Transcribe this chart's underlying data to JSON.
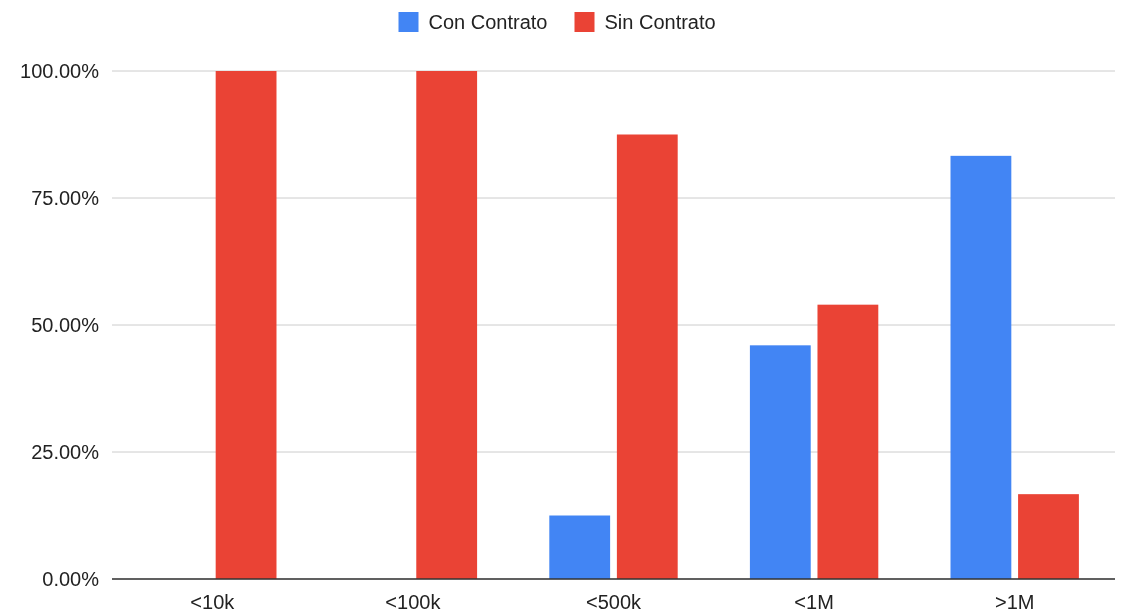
{
  "chart_data": {
    "type": "bar",
    "categories": [
      "<10k",
      "<100k",
      "<500k",
      "<1M",
      ">1M"
    ],
    "series": [
      {
        "name": "Con Contrato",
        "color": "#4285f4",
        "values": [
          0,
          0,
          12.5,
          46,
          83.3
        ]
      },
      {
        "name": "Sin Contrato",
        "color": "#ea4335",
        "values": [
          100,
          100,
          87.5,
          54,
          16.7
        ]
      }
    ],
    "ylim": [
      0,
      100
    ],
    "yticks": [
      {
        "value": 0,
        "label": "0.00%"
      },
      {
        "value": 25,
        "label": "25.00%"
      },
      {
        "value": 50,
        "label": "50.00%"
      },
      {
        "value": 75,
        "label": "75.00%"
      },
      {
        "value": 100,
        "label": "100.00%"
      }
    ],
    "grid": "y",
    "legend": "top"
  }
}
